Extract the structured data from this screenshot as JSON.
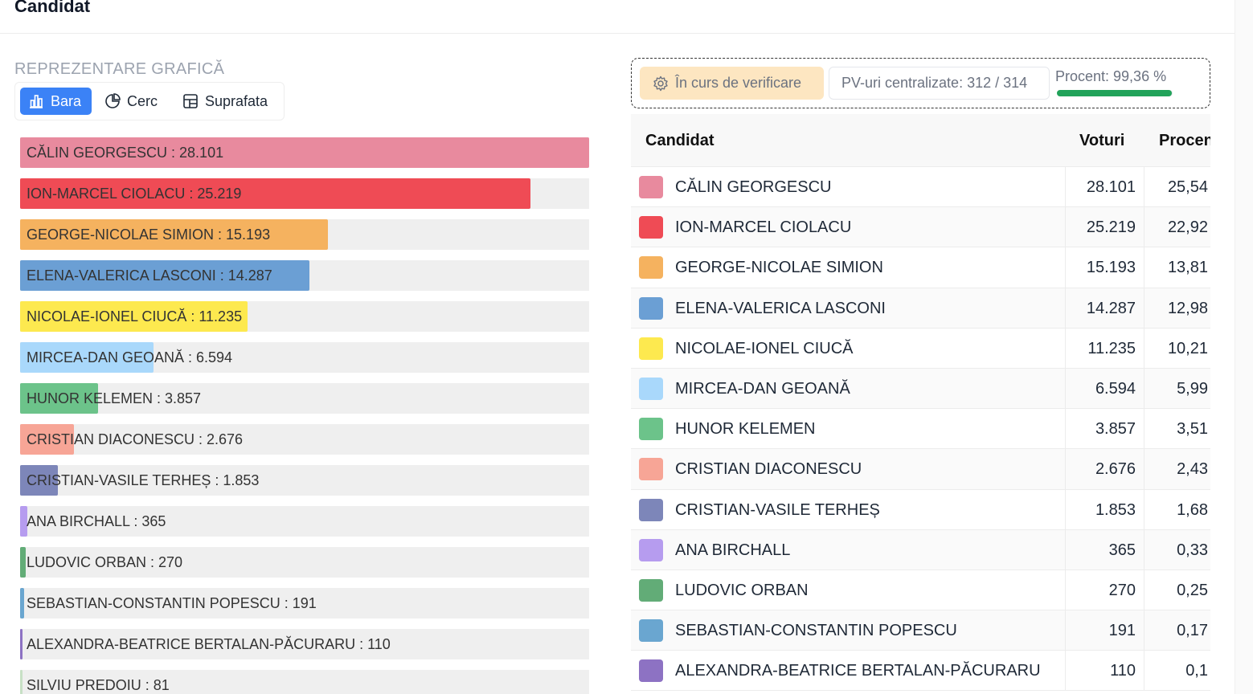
{
  "header": {
    "title": "Candidat"
  },
  "chart_section": {
    "label": "REPREZENTARE GRAFICĂ",
    "view_buttons": [
      {
        "label": "Bara",
        "icon": "bar-chart-icon",
        "active": true
      },
      {
        "label": "Cerc",
        "icon": "pie-chart-icon",
        "active": false
      },
      {
        "label": "Suprafata",
        "icon": "treemap-icon",
        "active": false
      }
    ]
  },
  "status": {
    "verification": "În curs de verificare",
    "pv_centralized": "PV-uri centralizate: 312 / 314",
    "percent_label": "Procent: 99,36 %",
    "percent_value": 99.36
  },
  "table": {
    "headers": {
      "candidate": "Candidat",
      "votes": "Voturi",
      "percent": "Procent"
    }
  },
  "chart_data": {
    "type": "bar",
    "orientation": "horizontal",
    "xlim": [
      0,
      28101
    ],
    "categories": [
      "CĂLIN GEORGESCU",
      "ION-MARCEL CIOLACU",
      "GEORGE-NICOLAE SIMION",
      "ELENA-VALERICA LASCONI",
      "NICOLAE-IONEL CIUCĂ",
      "MIRCEA-DAN GEOANĂ",
      "HUNOR KELEMEN",
      "CRISTIAN DIACONESCU",
      "CRISTIAN-VASILE TERHEȘ",
      "ANA BIRCHALL",
      "LUDOVIC ORBAN",
      "SEBASTIAN-CONSTANTIN POPESCU",
      "ALEXANDRA-BEATRICE BERTALAN-PĂCURARU",
      "SILVIU PREDOIU"
    ],
    "values": [
      28101,
      25219,
      15193,
      14287,
      11235,
      6594,
      3857,
      2676,
      1853,
      365,
      270,
      191,
      110,
      81
    ],
    "value_labels": [
      "28.101",
      "25.219",
      "15.193",
      "14.287",
      "11.235",
      "6.594",
      "3.857",
      "2.676",
      "1.853",
      "365",
      "270",
      "191",
      "110",
      "81"
    ],
    "percent_labels": [
      "25,54",
      "22,92",
      "13,81",
      "12,98",
      "10,21",
      "5,99",
      "3,51",
      "2,43",
      "1,68",
      "0,33",
      "0,25",
      "0,17",
      "0,1",
      ""
    ],
    "colors": [
      "#e88a9e",
      "#ef4b55",
      "#f5b25f",
      "#6b9fd4",
      "#fde94f",
      "#a9d8fb",
      "#6cc38a",
      "#f7a596",
      "#7d86b9",
      "#b69cef",
      "#62ac77",
      "#6aa6d0",
      "#8d72c3",
      "#c7e0c5"
    ]
  }
}
